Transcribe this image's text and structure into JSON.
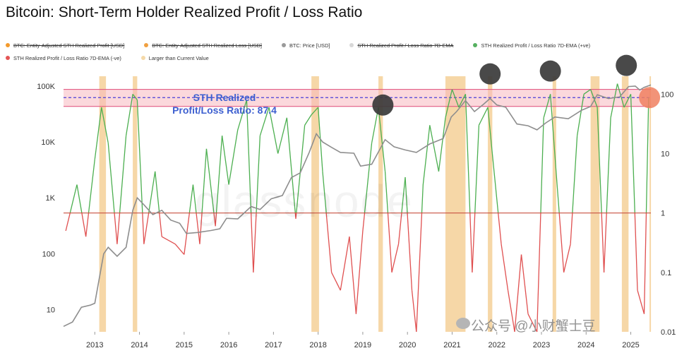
{
  "title": "Bitcoin: Short-Term Holder Realized Profit / Loss Ratio",
  "legend": [
    {
      "label": "BTC: Entity-Adjusted STH Realized Profit [USD]",
      "color": "#f39a2c",
      "struck": true
    },
    {
      "label": "BTC: Entity-Adjusted STH Realized Loss [USD]",
      "color": "#f0a040",
      "struck": true
    },
    {
      "label": "BTC: Price [USD]",
      "color": "#9a9a9a",
      "struck": false
    },
    {
      "label": "STH Realized Profit / Loss Ratio 7D-EMA",
      "color": "#d8d8d8",
      "struck": true
    },
    {
      "label": "STH Realized Profit / Loss Ratio 7D-EMA (+ve)",
      "color": "#55b060",
      "struck": false
    },
    {
      "label": "STH Realized Profit / Loss Ratio 7D-EMA (-ve)",
      "color": "#e45555",
      "struck": false
    },
    {
      "label": "Larger than Current Value",
      "color": "#f5d9a8",
      "struck": false
    }
  ],
  "annotation": {
    "line1": "STH Realized",
    "line2": "Profit/Loss Ratio: 87.4"
  },
  "watermark": "公众号 @小财蟹士豆",
  "colors": {
    "price": "#8e8e8e",
    "positive": "#4caf50",
    "negative": "#e05050",
    "highlight": "#f3c98a",
    "band": "#f7b8c0",
    "band_line": "#e04b78",
    "dashed": "#4a3fd8",
    "baseline": "#c85040",
    "annotation": "#3d5fd0",
    "circle_dark": "#3a3a3a",
    "circle_current": "#f08060"
  },
  "chart_data": {
    "type": "line",
    "title": "Bitcoin: Short-Term Holder Realized Profit / Loss Ratio",
    "x_range": [
      2012.3,
      2025.45
    ],
    "x_ticks": [
      "2013",
      "2014",
      "2015",
      "2016",
      "2017",
      "2018",
      "2019",
      "2020",
      "2021",
      "2022",
      "2023",
      "2024",
      "2025"
    ],
    "y_left": {
      "label": "",
      "scale": "log",
      "range": [
        4,
        150000
      ],
      "ticks": [
        "10",
        "100",
        "1K",
        "10K",
        "100K"
      ],
      "tick_values": [
        10,
        100,
        1000,
        10000,
        100000
      ]
    },
    "y_right": {
      "label": "",
      "scale": "log",
      "range": [
        0.01,
        200
      ],
      "ticks": [
        "0.01",
        "0.1",
        "1",
        "10",
        "100"
      ],
      "tick_values": [
        0.01,
        0.1,
        1,
        10,
        100
      ]
    },
    "current_ratio": 87.4,
    "band": [
      62,
      120
    ],
    "baseline_ratio": 1,
    "price_series": {
      "name": "BTC: Price [USD]",
      "x": [
        2012.3,
        2012.5,
        2012.7,
        2012.9,
        2013.0,
        2013.2,
        2013.3,
        2013.5,
        2013.7,
        2013.85,
        2013.95,
        2014.1,
        2014.3,
        2014.5,
        2014.7,
        2014.9,
        2015.05,
        2015.3,
        2015.6,
        2015.8,
        2015.95,
        2016.2,
        2016.5,
        2016.7,
        2016.95,
        2017.2,
        2017.4,
        2017.6,
        2017.8,
        2017.96,
        2018.1,
        2018.3,
        2018.5,
        2018.8,
        2018.95,
        2019.2,
        2019.5,
        2019.7,
        2019.95,
        2020.2,
        2020.5,
        2020.8,
        2020.98,
        2021.1,
        2021.3,
        2021.5,
        2021.7,
        2021.85,
        2022.0,
        2022.2,
        2022.45,
        2022.7,
        2022.9,
        2023.1,
        2023.3,
        2023.6,
        2023.9,
        2024.1,
        2024.25,
        2024.5,
        2024.75,
        2024.95,
        2025.1,
        2025.2,
        2025.3,
        2025.45
      ],
      "values": [
        5,
        6,
        11,
        12,
        13,
        100,
        130,
        90,
        130,
        600,
        1000,
        750,
        500,
        600,
        400,
        350,
        230,
        240,
        260,
        280,
        430,
        420,
        700,
        620,
        960,
        1100,
        2300,
        2800,
        6500,
        14000,
        10000,
        8000,
        6500,
        6300,
        3700,
        4000,
        11000,
        8200,
        7200,
        6500,
        9200,
        11500,
        28000,
        35000,
        55000,
        35000,
        47000,
        60000,
        46000,
        42000,
        21000,
        19500,
        16500,
        22000,
        28000,
        26000,
        37000,
        43000,
        70000,
        60000,
        64000,
        98000,
        100000,
        85000,
        95000,
        105000
      ]
    },
    "ratio_series": {
      "name": "STH Realized Profit / Loss Ratio 7D-EMA",
      "x": [
        2012.35,
        2012.6,
        2012.8,
        2013.0,
        2013.15,
        2013.3,
        2013.5,
        2013.7,
        2013.85,
        2013.95,
        2014.1,
        2014.35,
        2014.5,
        2014.8,
        2015.0,
        2015.2,
        2015.35,
        2015.5,
        2015.7,
        2015.85,
        2016.0,
        2016.2,
        2016.4,
        2016.55,
        2016.7,
        2016.9,
        2017.1,
        2017.3,
        2017.5,
        2017.7,
        2017.85,
        2018.0,
        2018.1,
        2018.3,
        2018.5,
        2018.7,
        2018.85,
        2019.0,
        2019.2,
        2019.35,
        2019.5,
        2019.65,
        2019.8,
        2019.95,
        2020.1,
        2020.2,
        2020.35,
        2020.5,
        2020.7,
        2020.85,
        2021.0,
        2021.15,
        2021.3,
        2021.45,
        2021.6,
        2021.8,
        2021.9,
        2022.1,
        2022.25,
        2022.4,
        2022.55,
        2022.7,
        2022.9,
        2023.05,
        2023.2,
        2023.35,
        2023.5,
        2023.65,
        2023.8,
        2023.95,
        2024.1,
        2024.25,
        2024.4,
        2024.55,
        2024.7,
        2024.85,
        2025.0,
        2025.15,
        2025.3,
        2025.4
      ],
      "values": [
        0.5,
        3,
        0.4,
        8,
        60,
        15,
        0.3,
        20,
        100,
        80,
        0.3,
        5,
        0.4,
        0.3,
        0.2,
        3,
        0.3,
        12,
        0.6,
        20,
        3,
        25,
        80,
        0.1,
        20,
        60,
        10,
        40,
        0.8,
        30,
        45,
        60,
        5,
        0.1,
        0.05,
        0.4,
        0.02,
        0.5,
        15,
        60,
        5,
        0.1,
        0.3,
        4,
        0.05,
        0.01,
        3,
        30,
        5,
        40,
        120,
        60,
        100,
        0.1,
        30,
        60,
        10,
        0.3,
        0.05,
        0.01,
        0.2,
        0.02,
        0.01,
        40,
        100,
        3,
        0.1,
        0.3,
        20,
        100,
        120,
        60,
        0.1,
        40,
        150,
        60,
        100,
        0.05,
        0.02,
        87.4
      ]
    },
    "highlight_periods": [
      [
        2013.1,
        2013.25
      ],
      [
        2013.85,
        2013.95
      ],
      [
        2017.85,
        2018.02
      ],
      [
        2019.35,
        2019.45
      ],
      [
        2020.85,
        2021.3
      ],
      [
        2021.8,
        2021.9
      ],
      [
        2023.25,
        2023.33
      ],
      [
        2024.1,
        2024.3
      ],
      [
        2024.8,
        2024.95
      ],
      [
        2025.42,
        2025.45
      ]
    ],
    "peak_markers": [
      2019.45,
      2021.85,
      2023.2,
      2024.9
    ],
    "current_marker": 2025.42
  }
}
